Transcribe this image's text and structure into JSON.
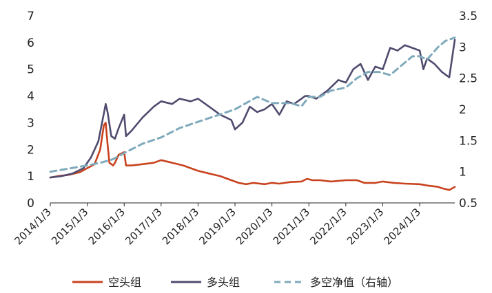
{
  "chart_data": {
    "type": "line",
    "title": "",
    "xlabel": "",
    "ylabel": "",
    "x_ticks": [
      "2014/1/3",
      "2015/1/3",
      "2016/1/3",
      "2017/1/3",
      "2018/1/3",
      "2019/1/3",
      "2020/1/3",
      "2021/1/3",
      "2022/1/3",
      "2023/1/3",
      "2024/1/3"
    ],
    "ylim_left": [
      0,
      7
    ],
    "y_ticks_left": [
      "0",
      "1",
      "2",
      "3",
      "4",
      "5",
      "6",
      "7"
    ],
    "ylim_right": [
      0.5,
      3.5
    ],
    "y_ticks_right": [
      "0.5",
      "1",
      "1.5",
      "2",
      "2.5",
      "3",
      "3.5"
    ],
    "legend_position": "bottom",
    "grid": false,
    "series": [
      {
        "name": "空头组",
        "axis": "left",
        "style": "solid",
        "color": "#c8421e",
        "x": [
          2014.0,
          2014.2,
          2014.5,
          2014.8,
          2015.0,
          2015.2,
          2015.35,
          2015.45,
          2015.5,
          2015.55,
          2015.6,
          2015.7,
          2015.75,
          2015.85,
          2016.0,
          2016.05,
          2016.2,
          2016.5,
          2016.8,
          2017.0,
          2017.3,
          2017.6,
          2018.0,
          2018.3,
          2018.6,
          2018.9,
          2019.1,
          2019.3,
          2019.5,
          2019.8,
          2020.0,
          2020.2,
          2020.5,
          2020.8,
          2020.95,
          2021.1,
          2021.3,
          2021.6,
          2022.0,
          2022.3,
          2022.5,
          2022.8,
          2023.0,
          2023.3,
          2023.6,
          2024.0,
          2024.2,
          2024.5,
          2024.6,
          2024.8,
          2024.95
        ],
        "y": [
          0.95,
          1.0,
          1.05,
          1.15,
          1.3,
          1.45,
          2.0,
          2.9,
          3.0,
          2.2,
          1.5,
          1.4,
          1.5,
          1.8,
          1.9,
          1.4,
          1.4,
          1.45,
          1.5,
          1.6,
          1.5,
          1.4,
          1.2,
          1.1,
          1.0,
          0.85,
          0.75,
          0.7,
          0.75,
          0.7,
          0.75,
          0.72,
          0.78,
          0.8,
          0.9,
          0.85,
          0.85,
          0.8,
          0.85,
          0.85,
          0.75,
          0.75,
          0.8,
          0.75,
          0.72,
          0.7,
          0.65,
          0.6,
          0.55,
          0.48,
          0.6
        ]
      },
      {
        "name": "多头组",
        "axis": "left",
        "style": "solid",
        "color": "#4f4b6e",
        "x": [
          2014.0,
          2014.3,
          2014.6,
          2014.9,
          2015.1,
          2015.3,
          2015.4,
          2015.5,
          2015.55,
          2015.65,
          2015.75,
          2015.85,
          2016.0,
          2016.05,
          2016.2,
          2016.5,
          2016.8,
          2017.0,
          2017.3,
          2017.5,
          2017.8,
          2018.0,
          2018.3,
          2018.6,
          2018.9,
          2019.0,
          2019.2,
          2019.4,
          2019.6,
          2019.8,
          2020.0,
          2020.2,
          2020.4,
          2020.6,
          2020.9,
          2021.0,
          2021.2,
          2021.5,
          2021.8,
          2022.0,
          2022.2,
          2022.4,
          2022.6,
          2022.8,
          2023.0,
          2023.2,
          2023.4,
          2023.6,
          2023.8,
          2024.0,
          2024.1,
          2024.2,
          2024.4,
          2024.6,
          2024.8,
          2024.95
        ],
        "y": [
          0.95,
          1.0,
          1.1,
          1.3,
          1.7,
          2.3,
          3.0,
          3.7,
          3.4,
          2.5,
          2.4,
          2.8,
          3.3,
          2.5,
          2.7,
          3.2,
          3.6,
          3.8,
          3.7,
          3.9,
          3.8,
          3.9,
          3.6,
          3.3,
          3.1,
          2.75,
          3.0,
          3.6,
          3.4,
          3.5,
          3.7,
          3.3,
          3.8,
          3.7,
          4.0,
          4.0,
          3.9,
          4.2,
          4.6,
          4.5,
          5.0,
          5.2,
          4.6,
          5.1,
          5.0,
          5.8,
          5.7,
          5.9,
          5.8,
          5.7,
          5.0,
          5.4,
          5.2,
          4.9,
          4.7,
          6.1
        ]
      },
      {
        "name": "多空净值（右轴）",
        "axis": "right",
        "style": "dashed",
        "color": "#7faabb",
        "x": [
          2014.0,
          2014.5,
          2015.0,
          2015.4,
          2015.7,
          2016.0,
          2016.5,
          2017.0,
          2017.5,
          2018.0,
          2018.5,
          2019.0,
          2019.3,
          2019.6,
          2020.0,
          2020.5,
          2020.8,
          2021.0,
          2021.3,
          2021.6,
          2022.0,
          2022.3,
          2022.6,
          2022.9,
          2023.2,
          2023.5,
          2023.8,
          2024.0,
          2024.2,
          2024.5,
          2024.7,
          2024.95
        ],
        "y": [
          1.0,
          1.05,
          1.1,
          1.15,
          1.2,
          1.3,
          1.45,
          1.55,
          1.7,
          1.8,
          1.9,
          2.0,
          2.1,
          2.2,
          2.1,
          2.1,
          2.05,
          2.2,
          2.2,
          2.3,
          2.35,
          2.5,
          2.6,
          2.6,
          2.55,
          2.7,
          2.85,
          2.85,
          2.8,
          3.0,
          3.1,
          3.15
        ]
      }
    ]
  }
}
